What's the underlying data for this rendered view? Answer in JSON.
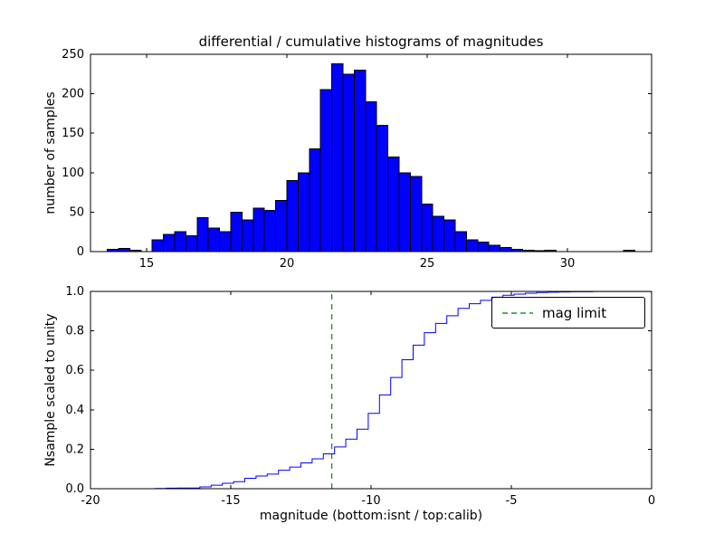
{
  "figure": {
    "background": "#ffffff"
  },
  "chart_data": [
    {
      "type": "bar",
      "title": "differential / cumulative histograms of magnitudes",
      "xlabel": "",
      "ylabel": "number of samples",
      "xlim": [
        13,
        33
      ],
      "ylim": [
        0,
        250
      ],
      "xticks": [
        15,
        20,
        25,
        30
      ],
      "xtick_labels": [
        "15",
        "20",
        "25",
        "30"
      ],
      "yticks": [
        0,
        50,
        100,
        150,
        200,
        250
      ],
      "ytick_labels": [
        "0",
        "50",
        "100",
        "150",
        "200",
        "250"
      ],
      "grid": false,
      "bar_color": "#0000ff",
      "bar_edge_color": "#000000",
      "bin_width": 0.4,
      "bin_starts": [
        13.2,
        13.6,
        14.0,
        14.4,
        14.8,
        15.2,
        15.6,
        16.0,
        16.4,
        16.8,
        17.2,
        17.6,
        18.0,
        18.4,
        18.8,
        19.2,
        19.6,
        20.0,
        20.4,
        20.8,
        21.2,
        21.6,
        22.0,
        22.4,
        22.8,
        23.2,
        23.6,
        24.0,
        24.4,
        24.8,
        25.2,
        25.6,
        26.0,
        26.4,
        26.8,
        27.2,
        27.6,
        28.0,
        28.4,
        28.8,
        29.2,
        29.6,
        30.0,
        30.4,
        30.8,
        31.2,
        31.6,
        32.0
      ],
      "counts": [
        0,
        3,
        4,
        2,
        0,
        15,
        22,
        25,
        20,
        43,
        30,
        25,
        50,
        40,
        55,
        52,
        65,
        90,
        100,
        130,
        205,
        238,
        225,
        230,
        190,
        160,
        120,
        100,
        95,
        60,
        45,
        40,
        25,
        15,
        12,
        8,
        5,
        3,
        2,
        1,
        2,
        0,
        0,
        0,
        0,
        0,
        0,
        2
      ]
    },
    {
      "type": "line",
      "title": "",
      "xlabel": "magnitude (bottom:isnt / top:calib)",
      "ylabel": "Nsample scaled to unity",
      "xlim": [
        -20,
        0
      ],
      "ylim": [
        0,
        1
      ],
      "xticks": [
        -20,
        -15,
        -10,
        -5,
        0
      ],
      "xtick_labels": [
        "-20",
        "-15",
        "-10",
        "-5",
        "0"
      ],
      "yticks": [
        0,
        0.2,
        0.4,
        0.6,
        0.8,
        1.0
      ],
      "ytick_labels": [
        "0.0",
        "0.2",
        "0.4",
        "0.6",
        "0.8",
        "1.0"
      ],
      "grid": false,
      "line_color": "#0000ff",
      "description": "cumulative distribution of the top histogram scaled to unity",
      "x_offset": -31.3,
      "mag_limit": {
        "x": -11.4,
        "color": "#2e8b2e",
        "style": "dashed",
        "label": "mag limit"
      },
      "legend": {
        "position": "upper right",
        "entries": [
          {
            "label": "mag limit",
            "color": "#2e8b2e",
            "dash": true
          }
        ]
      }
    }
  ]
}
